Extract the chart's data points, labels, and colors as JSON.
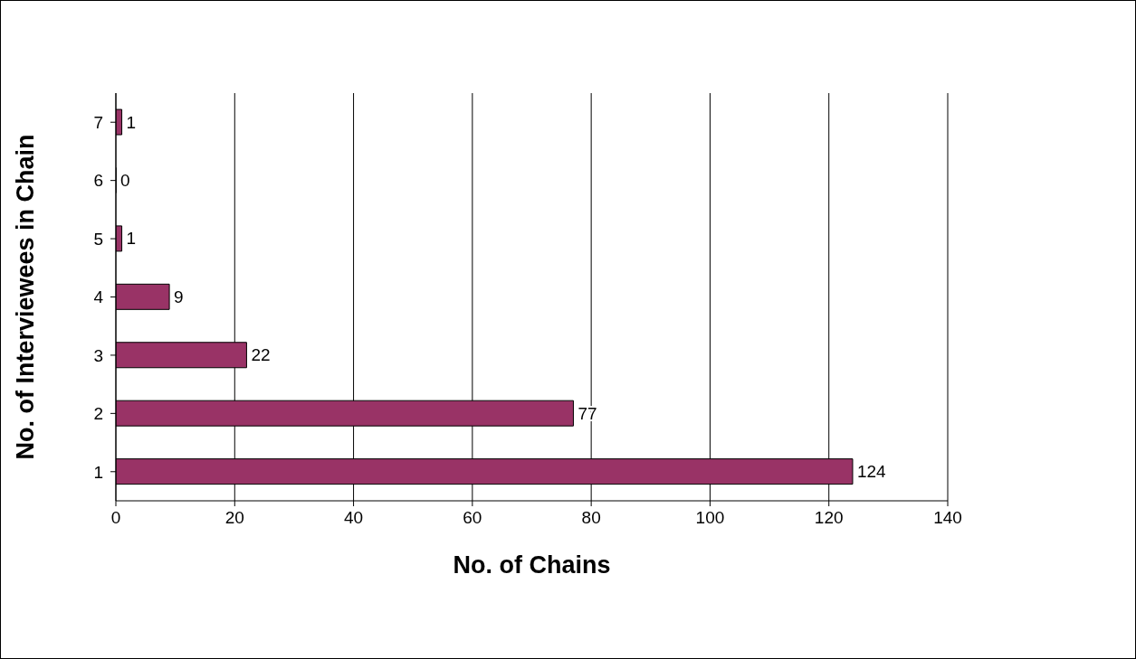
{
  "chart_data": {
    "type": "bar",
    "orientation": "horizontal",
    "xlabel": "No. of Chains",
    "ylabel": "No. of Interviewees in Chain",
    "categories": [
      "7",
      "6",
      "5",
      "4",
      "3",
      "2",
      "1"
    ],
    "values": [
      1,
      0,
      1,
      9,
      22,
      77,
      124
    ],
    "color": "#993366",
    "xlim": [
      0,
      140
    ],
    "xticks": [
      0,
      20,
      40,
      60,
      80,
      100,
      120,
      140
    ],
    "grid": "x",
    "data_labels": true
  }
}
